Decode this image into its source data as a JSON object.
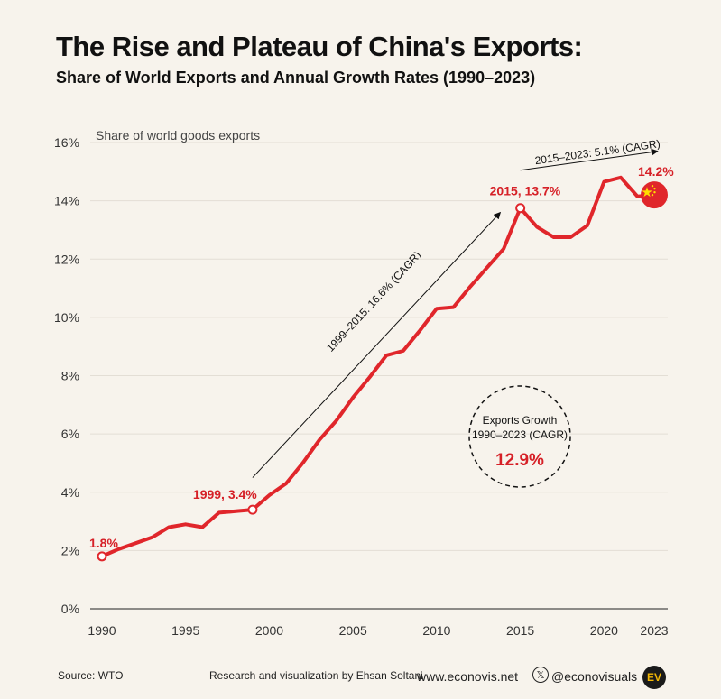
{
  "title": "The Rise and Plateau of China's Exports:",
  "subtitle": "Share of World Exports and Annual Growth Rates (1990–2023)",
  "footer": {
    "source": "Source: WTO",
    "credit": "Research and visualization by Ehsan Soltani",
    "website": "www.econovis.net",
    "x_icon": "𝕏",
    "handle": "@econovisuals",
    "logo": "EV"
  },
  "colors": {
    "background": "#f7f3ec",
    "line": "#e0262b",
    "label_red": "#d62027",
    "grid": "#e3ded5"
  },
  "chart_data": {
    "type": "line",
    "title": "",
    "xlabel": "",
    "ylabel": "Share of world goods exports",
    "xlim": [
      1990,
      2023
    ],
    "ylim": [
      0,
      16
    ],
    "y_ticks": [
      0,
      2,
      4,
      6,
      8,
      10,
      12,
      14,
      16
    ],
    "y_tick_labels": [
      "0%",
      "2%",
      "4%",
      "6%",
      "8%",
      "10%",
      "12%",
      "14%",
      "16%"
    ],
    "x_ticks": [
      1990,
      1995,
      2000,
      2005,
      2010,
      2015,
      2020,
      2023
    ],
    "x_tick_labels": [
      "1990",
      "1995",
      "2000",
      "2005",
      "2010",
      "2015",
      "2020",
      "2023"
    ],
    "grid": "horizontal",
    "series": [
      {
        "x": [
          1990,
          1991,
          1992,
          1993,
          1994,
          1995,
          1996,
          1997,
          1998,
          1999,
          2000,
          2001,
          2002,
          2003,
          2004,
          2005,
          2006,
          2007,
          2008,
          2009,
          2010,
          2011,
          2012,
          2013,
          2014,
          2015,
          2016,
          2017,
          2018,
          2019,
          2020,
          2021,
          2022,
          2023
        ],
        "values": [
          1.8,
          2.05,
          2.25,
          2.45,
          2.8,
          2.9,
          2.8,
          3.3,
          3.35,
          3.4,
          3.9,
          4.3,
          5.0,
          5.8,
          6.45,
          7.25,
          7.95,
          8.7,
          8.85,
          9.55,
          10.3,
          10.35,
          11.05,
          11.7,
          12.35,
          13.75,
          13.1,
          12.75,
          12.75,
          13.15,
          14.65,
          14.8,
          14.15,
          14.2
        ]
      }
    ],
    "point_labels": [
      {
        "x": 1990,
        "y": 1.8,
        "text": "1.8%"
      },
      {
        "x": 1999,
        "y": 3.4,
        "text": "1999, 3.4%"
      },
      {
        "x": 2015,
        "y": 13.75,
        "text": "2015, 13.7%"
      },
      {
        "x": 2023,
        "y": 14.2,
        "text": "14.2%"
      }
    ],
    "annotations": {
      "cagr_1999_2015": "1999–2015: 16.6% (CAGR)",
      "cagr_2015_2023": "2015–2023: 5.1% (CAGR)",
      "growth_label_line1": "Exports Growth",
      "growth_label_line2": "1990–2023 (CAGR)",
      "growth_value": "12.9%"
    }
  }
}
